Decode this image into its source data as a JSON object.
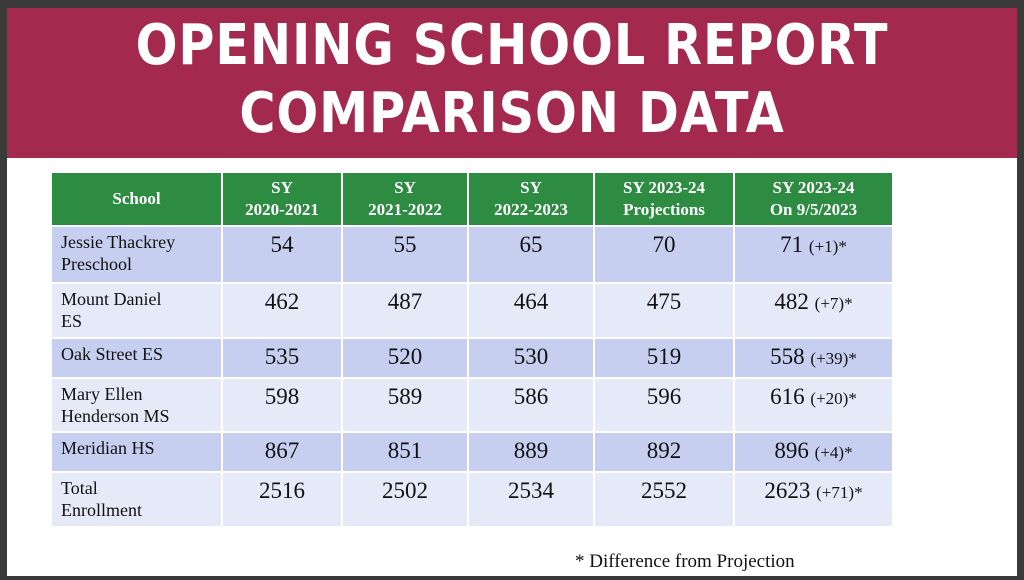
{
  "title": {
    "line1": "OPENING SCHOOL REPORT",
    "line2": "COMPARISON DATA"
  },
  "colors": {
    "banner": "#a3294f",
    "header": "#2e8b42",
    "row_dark": "#c7cff1",
    "row_light": "#e6e9f7"
  },
  "table": {
    "headers": [
      {
        "line1": "School",
        "line2": ""
      },
      {
        "line1": "SY",
        "line2": "2020-2021"
      },
      {
        "line1": "SY",
        "line2": "2021-2022"
      },
      {
        "line1": "SY",
        "line2": "2022-2023"
      },
      {
        "line1": "SY 2023-24",
        "line2": "Projections"
      },
      {
        "line1": "SY 2023-24",
        "line2": "On 9/5/2023"
      }
    ],
    "rows": [
      {
        "name1": "Jessie Thackrey",
        "name2": "Preschool",
        "v1": "54",
        "v2": "55",
        "v3": "65",
        "v4": "70",
        "v5": "71",
        "diff": "(+1)*"
      },
      {
        "name1": "Mount Daniel",
        "name2": "ES",
        "v1": "462",
        "v2": "487",
        "v3": "464",
        "v4": "475",
        "v5": "482",
        "diff": "(+7)*"
      },
      {
        "name1": "Oak Street ES",
        "name2": "",
        "v1": "535",
        "v2": "520",
        "v3": "530",
        "v4": "519",
        "v5": "558",
        "diff": "(+39)*"
      },
      {
        "name1": "Mary Ellen",
        "name2": "Henderson MS",
        "v1": "598",
        "v2": "589",
        "v3": "586",
        "v4": "596",
        "v5": "616",
        "diff": "(+20)*"
      },
      {
        "name1": "Meridian HS",
        "name2": "",
        "v1": "867",
        "v2": "851",
        "v3": "889",
        "v4": "892",
        "v5": "896",
        "diff": "(+4)*"
      },
      {
        "name1": "Total",
        "name2": "Enrollment",
        "v1": "2516",
        "v2": "2502",
        "v3": "2534",
        "v4": "2552",
        "v5": "2623",
        "diff": "(+71)*"
      }
    ]
  },
  "footnote": "* Difference from Projection"
}
